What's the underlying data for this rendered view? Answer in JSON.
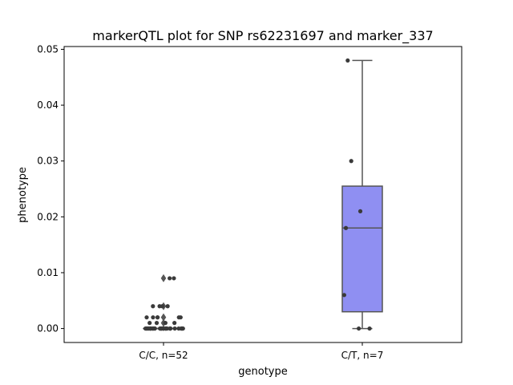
{
  "chart_data": {
    "type": "box",
    "title": "markerQTL plot for SNP rs62231697 and marker_337",
    "xlabel": "genotype",
    "ylabel": "phenotype",
    "categories": [
      "C/C, n=52",
      "C/T, n=7"
    ],
    "ylim": [
      -0.0025,
      0.0505
    ],
    "yticks": [
      0.0,
      0.01,
      0.02,
      0.03,
      0.04,
      0.05
    ],
    "ytick_labels": [
      "0.00",
      "0.01",
      "0.02",
      "0.03",
      "0.04",
      "0.05"
    ],
    "box_color": "#8f8ff2",
    "edge_color": "#555555",
    "point_color": "#3a3a3a",
    "boxes": [
      {
        "category": "C/C, n=52",
        "whisker_low": 0.0,
        "q1": 0.0,
        "median": 0.0,
        "q3": 0.0,
        "whisker_high": 0.0,
        "outliers": [
          0.009,
          0.004,
          0.002,
          0.001
        ]
      },
      {
        "category": "C/T, n=7",
        "whisker_low": 0.0,
        "q1": 0.003,
        "median": 0.018,
        "q3": 0.0255,
        "whisker_high": 0.048,
        "outliers": []
      }
    ],
    "points": [
      {
        "category": "C/C, n=52",
        "values": [
          0,
          0,
          0,
          0,
          0,
          0,
          0,
          0,
          0,
          0,
          0,
          0,
          0,
          0,
          0,
          0,
          0,
          0,
          0,
          0,
          0,
          0,
          0,
          0,
          0,
          0,
          0,
          0,
          0,
          0,
          0,
          0,
          0,
          0,
          0,
          0,
          0.001,
          0.001,
          0.001,
          0.001,
          0.002,
          0.002,
          0.002,
          0.002,
          0.002,
          0.002,
          0.004,
          0.004,
          0.004,
          0.004,
          0.009,
          0.009
        ]
      },
      {
        "category": "C/T, n=7",
        "values": [
          0.048,
          0.03,
          0.021,
          0.018,
          0.006,
          0.0,
          0.0
        ]
      }
    ]
  }
}
